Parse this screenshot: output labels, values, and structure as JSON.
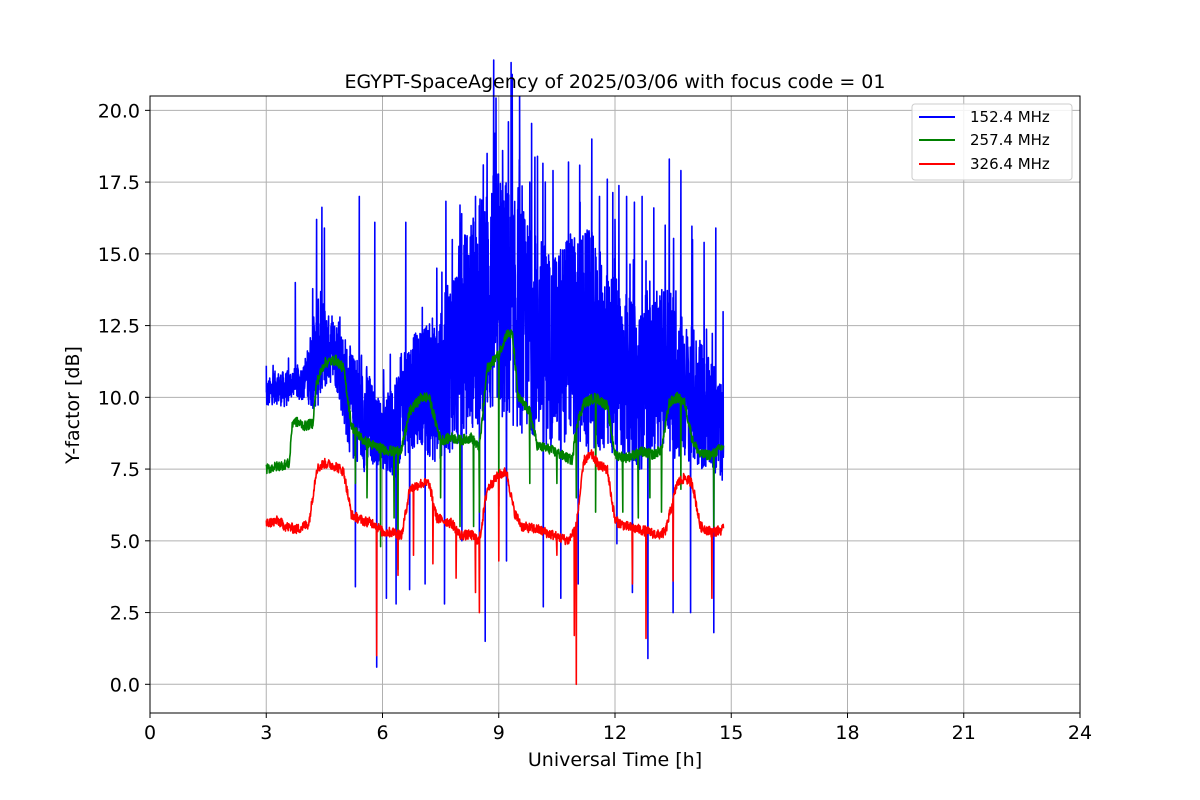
{
  "chart_data": {
    "type": "line",
    "title": "EGYPT-SpaceAgency of 2025/03/06 with focus code = 01",
    "xlabel": "Universal Time [h]",
    "ylabel": "Y-factor [dB]",
    "xlim": [
      0,
      24
    ],
    "ylim": [
      -1.0,
      20.5
    ],
    "xticks": [
      0,
      3,
      6,
      9,
      12,
      15,
      18,
      21,
      24
    ],
    "xtick_labels": [
      "0",
      "3",
      "6",
      "9",
      "12",
      "15",
      "18",
      "21",
      "24"
    ],
    "yticks": [
      0.0,
      2.5,
      5.0,
      7.5,
      10.0,
      12.5,
      15.0,
      17.5,
      20.0
    ],
    "ytick_labels": [
      "0.0",
      "2.5",
      "5.0",
      "7.5",
      "10.0",
      "12.5",
      "15.0",
      "17.5",
      "20.0"
    ],
    "grid": true,
    "legend_position": "top-right",
    "series": [
      {
        "name": "152.4 MHz",
        "color": "#0000ff",
        "x": [
          3.0,
          3.2,
          3.5,
          3.7,
          3.8,
          4.0,
          4.2,
          4.4,
          4.6,
          4.8,
          5.0,
          5.2,
          5.4,
          5.6,
          5.8,
          6.0,
          6.2,
          6.4,
          6.6,
          6.8,
          7.0,
          7.2,
          7.4,
          7.6,
          7.8,
          8.0,
          8.2,
          8.4,
          8.6,
          8.8,
          9.0,
          9.2,
          9.4,
          9.6,
          9.8,
          10.0,
          10.2,
          10.4,
          10.6,
          10.8,
          11.0,
          11.2,
          11.4,
          11.6,
          11.8,
          12.0,
          12.2,
          12.4,
          12.6,
          12.8,
          13.0,
          13.2,
          13.4,
          13.6,
          13.8,
          14.0,
          14.2,
          14.4,
          14.6,
          14.8
        ],
        "values": [
          10.0,
          10.3,
          10.2,
          10.5,
          10.4,
          10.5,
          11.0,
          11.5,
          11.6,
          11.4,
          10.5,
          9.5,
          9.2,
          9.0,
          8.8,
          8.6,
          8.5,
          9.0,
          9.8,
          10.0,
          10.2,
          10.0,
          9.8,
          10.5,
          11.0,
          11.5,
          12.0,
          12.5,
          12.8,
          13.0,
          13.2,
          12.8,
          12.5,
          12.3,
          12.0,
          11.8,
          11.5,
          11.2,
          11.5,
          11.8,
          11.6,
          11.5,
          11.4,
          11.2,
          11.0,
          10.8,
          10.5,
          10.3,
          10.0,
          10.0,
          10.5,
          10.8,
          10.6,
          10.3,
          10.0,
          9.8,
          9.5,
          9.2,
          9.0,
          8.5
        ],
        "spread": [
          0.6,
          0.7,
          0.8,
          0.6,
          0.7,
          0.8,
          2.0,
          2.5,
          1.5,
          1.5,
          2.0,
          2.5,
          2.0,
          2.5,
          1.5,
          1.5,
          2.0,
          2.5,
          2.5,
          2.5,
          2.5,
          3.0,
          3.0,
          3.5,
          4.0,
          4.5,
          4.5,
          5.0,
          5.0,
          5.5,
          5.5,
          5.5,
          5.0,
          5.0,
          4.5,
          4.5,
          4.5,
          4.0,
          4.5,
          4.5,
          4.5,
          5.0,
          5.0,
          4.5,
          4.0,
          4.0,
          4.0,
          3.5,
          3.5,
          3.5,
          3.5,
          3.5,
          4.0,
          3.5,
          3.0,
          3.0,
          3.0,
          2.5,
          2.5,
          2.0
        ],
        "peaks": [
          [
            3.0,
            11.1
          ],
          [
            3.75,
            14.0
          ],
          [
            4.3,
            16.2
          ],
          [
            4.5,
            15.9
          ],
          [
            4.7,
            12.0
          ],
          [
            4.9,
            12.8
          ],
          [
            5.4,
            17.0
          ],
          [
            5.8,
            16.1
          ],
          [
            6.2,
            11.5
          ],
          [
            6.6,
            16.1
          ],
          [
            7.2,
            11.9
          ],
          [
            7.4,
            14.5
          ],
          [
            7.8,
            15.5
          ],
          [
            8.0,
            16.7
          ],
          [
            8.4,
            17.0
          ],
          [
            8.6,
            18.1
          ],
          [
            8.7,
            18.5
          ],
          [
            8.9,
            19.2
          ],
          [
            9.1,
            18.6
          ],
          [
            9.25,
            19.6
          ],
          [
            9.5,
            17.3
          ],
          [
            9.8,
            17.5
          ],
          [
            10.0,
            18.4
          ],
          [
            10.2,
            17.5
          ],
          [
            10.4,
            17.9
          ],
          [
            10.6,
            17.0
          ],
          [
            10.8,
            18.2
          ],
          [
            11.1,
            16.8
          ],
          [
            11.4,
            19.0
          ],
          [
            11.6,
            17.0
          ],
          [
            11.8,
            17.6
          ],
          [
            12.0,
            16.2
          ],
          [
            12.3,
            17.0
          ],
          [
            12.5,
            16.8
          ],
          [
            12.7,
            17.0
          ],
          [
            13.0,
            16.6
          ],
          [
            13.4,
            18.3
          ],
          [
            13.7,
            17.9
          ],
          [
            14.0,
            15.5
          ],
          [
            14.3,
            15.4
          ],
          [
            14.6,
            15.9
          ]
        ],
        "dips": [
          [
            5.3,
            3.4
          ],
          [
            5.85,
            0.6
          ],
          [
            6.1,
            3.0
          ],
          [
            6.35,
            2.8
          ],
          [
            6.7,
            3.3
          ],
          [
            7.1,
            3.5
          ],
          [
            7.6,
            2.8
          ],
          [
            8.05,
            5.0
          ],
          [
            8.5,
            4.0
          ],
          [
            8.65,
            1.5
          ],
          [
            9.2,
            4.3
          ],
          [
            10.15,
            2.7
          ],
          [
            10.6,
            3.0
          ],
          [
            11.05,
            3.5
          ],
          [
            12.05,
            4.9
          ],
          [
            12.45,
            3.2
          ],
          [
            12.85,
            0.9
          ],
          [
            13.5,
            2.5
          ],
          [
            13.95,
            2.5
          ],
          [
            14.55,
            1.8
          ]
        ]
      },
      {
        "name": "257.4 MHz",
        "color": "#008000",
        "x": [
          3.0,
          3.3,
          3.6,
          3.65,
          3.7,
          4.0,
          4.2,
          4.3,
          4.5,
          4.8,
          5.0,
          5.2,
          5.5,
          5.8,
          6.0,
          6.3,
          6.5,
          6.7,
          7.0,
          7.2,
          7.5,
          7.8,
          8.0,
          8.3,
          8.5,
          8.7,
          9.0,
          9.2,
          9.35,
          9.5,
          9.8,
          10.0,
          10.3,
          10.6,
          10.9,
          11.0,
          11.2,
          11.5,
          11.8,
          12.0,
          12.3,
          12.5,
          12.7,
          13.0,
          13.2,
          13.4,
          13.6,
          13.8,
          14.0,
          14.2,
          14.5,
          14.8
        ],
        "values": [
          7.5,
          7.6,
          7.7,
          8.8,
          9.2,
          9.0,
          9.1,
          10.5,
          11.2,
          11.3,
          11.0,
          9.0,
          8.5,
          8.3,
          8.2,
          8.1,
          8.2,
          9.5,
          10.0,
          10.0,
          8.5,
          8.6,
          8.5,
          8.6,
          8.2,
          11.0,
          11.5,
          12.2,
          12.2,
          10.0,
          9.5,
          8.3,
          8.2,
          8.0,
          7.8,
          9.0,
          9.8,
          10.0,
          9.7,
          8.0,
          7.9,
          8.0,
          8.1,
          8.0,
          8.2,
          9.8,
          10.0,
          9.8,
          8.5,
          8.0,
          8.0,
          8.3
        ],
        "dips": [
          [
            5.3,
            7.0
          ],
          [
            5.6,
            6.5
          ],
          [
            5.95,
            4.8
          ],
          [
            6.3,
            5.8
          ],
          [
            6.4,
            4.0
          ],
          [
            7.5,
            6.5
          ],
          [
            8.0,
            5.5
          ],
          [
            8.35,
            5.5
          ],
          [
            8.5,
            6.0
          ],
          [
            9.0,
            6.2
          ],
          [
            9.8,
            7.0
          ],
          [
            10.5,
            7.0
          ],
          [
            11.0,
            6.5
          ],
          [
            11.5,
            6.0
          ],
          [
            12.2,
            6.0
          ],
          [
            12.6,
            5.8
          ],
          [
            12.9,
            6.5
          ],
          [
            13.2,
            6.0
          ],
          [
            13.7,
            6.8
          ],
          [
            14.55,
            5.5
          ]
        ]
      },
      {
        "name": "326.4 MHz",
        "color": "#ff0000",
        "x": [
          3.0,
          3.3,
          3.5,
          3.8,
          4.1,
          4.3,
          4.5,
          4.8,
          5.0,
          5.2,
          5.5,
          5.8,
          6.0,
          6.3,
          6.5,
          6.7,
          7.0,
          7.2,
          7.4,
          7.6,
          7.8,
          8.0,
          8.3,
          8.5,
          8.7,
          9.0,
          9.2,
          9.4,
          9.6,
          10.0,
          10.4,
          10.8,
          11.0,
          11.2,
          11.4,
          11.6,
          11.8,
          12.0,
          12.3,
          12.6,
          12.9,
          13.1,
          13.3,
          13.6,
          13.8,
          14.0,
          14.2,
          14.5,
          14.8
        ],
        "values": [
          5.6,
          5.7,
          5.5,
          5.4,
          5.6,
          7.5,
          7.7,
          7.6,
          7.4,
          5.9,
          5.7,
          5.6,
          5.3,
          5.3,
          5.2,
          6.8,
          7.0,
          7.0,
          5.8,
          5.7,
          5.6,
          5.2,
          5.2,
          5.0,
          6.8,
          7.3,
          7.4,
          6.0,
          5.5,
          5.4,
          5.2,
          5.0,
          5.5,
          7.8,
          8.0,
          7.6,
          7.5,
          5.7,
          5.5,
          5.4,
          5.3,
          5.2,
          5.3,
          7.0,
          7.2,
          7.0,
          5.5,
          5.3,
          5.4
        ],
        "dips": [
          [
            5.85,
            1.0
          ],
          [
            6.4,
            3.8
          ],
          [
            6.8,
            4.5
          ],
          [
            7.3,
            4.2
          ],
          [
            7.9,
            3.7
          ],
          [
            8.4,
            3.2
          ],
          [
            8.5,
            2.5
          ],
          [
            9.0,
            4.3
          ],
          [
            10.5,
            4.5
          ],
          [
            10.95,
            1.7
          ],
          [
            11.0,
            0.0
          ],
          [
            12.45,
            3.5
          ],
          [
            12.8,
            1.6
          ],
          [
            13.5,
            3.6
          ],
          [
            14.5,
            3.0
          ]
        ]
      }
    ]
  }
}
